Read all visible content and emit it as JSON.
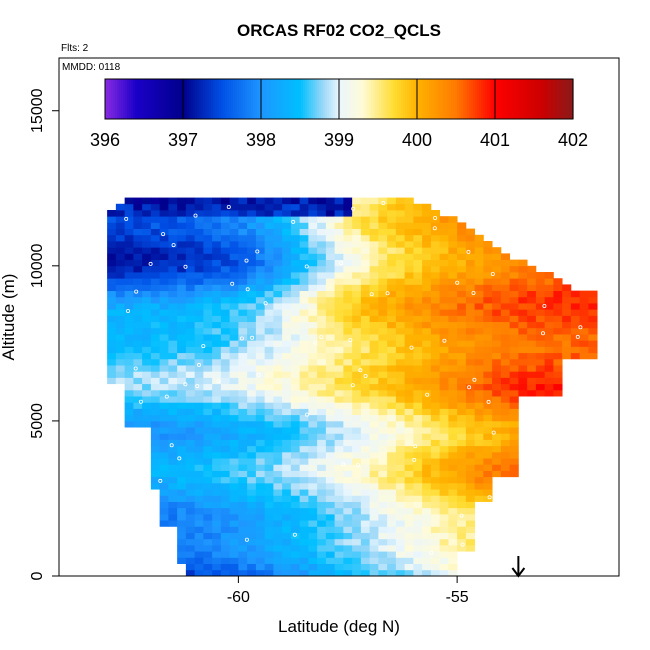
{
  "chart_data": {
    "type": "heatmap",
    "title": "ORCAS RF02 CO2_QCLS",
    "notes": {
      "flights": "Flts: 2",
      "date": "MMDD: 0118"
    },
    "xlabel": "Latitude (deg N)",
    "ylabel": "Altitude (m)",
    "xlim": [
      -64.1,
      -51.3
    ],
    "ylim": [
      0,
      16700
    ],
    "x_ticks": [
      -60,
      -55
    ],
    "x_tick_labels": [
      "-60",
      "-55"
    ],
    "y_ticks": [
      0,
      5000,
      10000,
      15000
    ],
    "y_tick_labels": [
      "0",
      "5000",
      "10000",
      "15000"
    ],
    "colorbar": {
      "min": 396,
      "max": 402,
      "ticks": [
        396,
        397,
        398,
        399,
        400,
        401,
        402
      ],
      "tick_labels": [
        "396",
        "397",
        "398",
        "399",
        "400",
        "401",
        "402"
      ],
      "stops": [
        {
          "v": 396.0,
          "c": "#8a2be2"
        },
        {
          "v": 396.4,
          "c": "#1a00c8"
        },
        {
          "v": 397.0,
          "c": "#00008b"
        },
        {
          "v": 397.5,
          "c": "#0050e6"
        },
        {
          "v": 398.0,
          "c": "#1e96ff"
        },
        {
          "v": 398.5,
          "c": "#00bfff"
        },
        {
          "v": 398.8,
          "c": "#9cd8f8"
        },
        {
          "v": 399.0,
          "c": "#eaf6fd"
        },
        {
          "v": 399.3,
          "c": "#fffbd8"
        },
        {
          "v": 399.7,
          "c": "#ffdd33"
        },
        {
          "v": 400.0,
          "c": "#ffb300"
        },
        {
          "v": 400.5,
          "c": "#ff7a00"
        },
        {
          "v": 401.0,
          "c": "#ff0000"
        },
        {
          "v": 401.6,
          "c": "#cc0000"
        },
        {
          "v": 402.0,
          "c": "#8b1a1a"
        }
      ]
    },
    "grid": false,
    "legend": "top (horizontal colorbar inside plot)",
    "data_extent": {
      "lat_range": [
        -63.0,
        -51.8
      ],
      "alt_range": [
        0,
        12300
      ],
      "lat_step": 0.2,
      "alt_step": 200
    },
    "field_description": [
      {
        "region": "upper stratosphere edge, lat -63 to -57",
        "alt": [
          11700,
          12300
        ],
        "co2": 396.9
      },
      {
        "region": "southern upper troposphere",
        "alt": [
          9000,
          11500
        ],
        "co2": 398.2
      },
      {
        "region": "mid troposphere south",
        "alt": [
          5000,
          8500
        ],
        "co2": 399.2
      },
      {
        "region": "northern mid/upper troposphere",
        "alt": [
          5000,
          11000
        ],
        "co2": 400.3
      },
      {
        "region": "boundary layer",
        "alt": [
          0,
          2000
        ],
        "co2": 398.3
      }
    ],
    "arrow": {
      "lat": -53.6,
      "direction": "down"
    }
  }
}
